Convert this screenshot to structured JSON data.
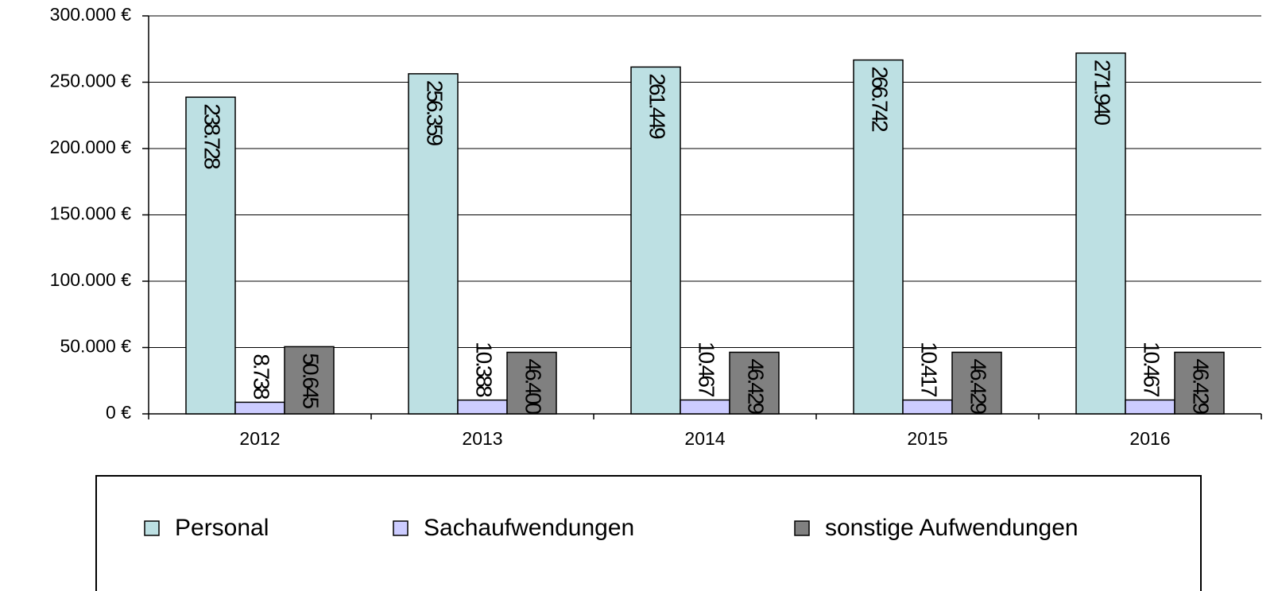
{
  "chart_data": {
    "type": "bar",
    "categories": [
      "2012",
      "2013",
      "2014",
      "2015",
      "2016"
    ],
    "series": [
      {
        "name": "Personal",
        "color": "#bde0e3",
        "values": [
          238728,
          256359,
          261449,
          266742,
          271940
        ],
        "value_labels": [
          "238.728",
          "256.359",
          "261.449",
          "266.742",
          "271.940"
        ]
      },
      {
        "name": "Sachaufwendungen",
        "color": "#ccccff",
        "values": [
          8738,
          10388,
          10467,
          10417,
          10467
        ],
        "value_labels": [
          "8.738",
          "10.388",
          "10.467",
          "10.417",
          "10.467"
        ]
      },
      {
        "name": "sonstige Aufwendungen",
        "color": "#808080",
        "values": [
          50645,
          46400,
          46429,
          46429,
          46429
        ],
        "value_labels": [
          "50.645",
          "46.400",
          "46.429",
          "46.429",
          "46.429"
        ]
      }
    ],
    "ylim": [
      0,
      300000
    ],
    "yticks": [
      {
        "value": 0,
        "label": "0 €"
      },
      {
        "value": 50000,
        "label": "50.000 €"
      },
      {
        "value": 100000,
        "label": "100.000 €"
      },
      {
        "value": 150000,
        "label": "150.000 €"
      },
      {
        "value": 200000,
        "label": "200.000 €"
      },
      {
        "value": 250000,
        "label": "250.000 €"
      },
      {
        "value": 300000,
        "label": "300.000 €"
      }
    ],
    "grid": true,
    "legend": "bottom"
  }
}
